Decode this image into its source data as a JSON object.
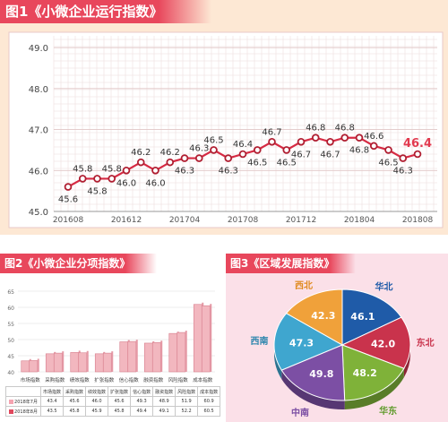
{
  "panel1": {
    "title": "图1《小微企业运行指数》",
    "chart_data": {
      "type": "line",
      "x_ticks": [
        "201608",
        "201612",
        "201704",
        "201708",
        "201712",
        "201804",
        "201808"
      ],
      "y_ticks": [
        "45.0",
        "46.0",
        "47.0",
        "48.0",
        "49.0"
      ],
      "ylim": [
        45.0,
        49.2
      ],
      "values": [
        45.6,
        45.8,
        45.8,
        45.8,
        46.0,
        46.2,
        46.0,
        46.2,
        46.3,
        46.3,
        46.5,
        46.3,
        46.4,
        46.5,
        46.7,
        46.5,
        46.7,
        46.8,
        46.7,
        46.8,
        46.8,
        46.6,
        46.5,
        46.3,
        46.4
      ],
      "labels": [
        "45.6",
        "45.8",
        "45.8",
        "45.8",
        "46.0",
        "46.2",
        "46.0",
        "46.2",
        "46.3",
        "46.3",
        "46.5",
        "46.3",
        "46.4",
        "46.5",
        "46.7",
        "46.5",
        "46.7",
        "46.8",
        "46.7",
        "46.8",
        "46.8",
        "46.6",
        "46.5",
        "46.3",
        "46.4"
      ],
      "label_pos": [
        "below",
        "above",
        "below",
        "above",
        "below",
        "above",
        "below",
        "above",
        "below",
        "above",
        "above",
        "below",
        "above",
        "below",
        "above",
        "below",
        "below",
        "above",
        "below",
        "above",
        "below",
        "above",
        "below",
        "below",
        "above"
      ],
      "highlight_last": true,
      "grid": true,
      "colors": {
        "line": "#d62a43",
        "marker": "#b01e31",
        "highlight": "#e23a4f"
      }
    }
  },
  "panel2": {
    "title": "图2《小微企业分项指数》",
    "chart_data": {
      "type": "bar",
      "categories": [
        "市场指数",
        "采购指数",
        "绩效指数",
        "扩张指数",
        "信心指数",
        "融资指数",
        "风险指数",
        "成本指数"
      ],
      "series": [
        {
          "name": "2018年7月",
          "values": [
            43.4,
            45.6,
            46.0,
            45.6,
            49.3,
            48.9,
            51.9,
            60.9
          ]
        },
        {
          "name": "2018年8月",
          "values": [
            43.5,
            45.8,
            45.9,
            45.8,
            49.4,
            49.1,
            52.2,
            60.5
          ]
        }
      ],
      "series_display": [
        [
          "43.4",
          "45.6",
          "46.0",
          "45.6",
          "49.3",
          "48.9",
          "51.9",
          "60.9"
        ],
        [
          "43.5",
          "45.8",
          "45.9",
          "45.8",
          "49.4",
          "49.1",
          "52.2",
          "60.5"
        ]
      ],
      "y_ticks": [
        "40",
        "45",
        "50",
        "55",
        "60",
        "65"
      ],
      "ylim": [
        40,
        65
      ],
      "grid": true,
      "colors": {
        "bar": "#f2b7bf",
        "bar_edge": "#d77d8c",
        "jul": "#f5a3b0",
        "aug": "#e0485d"
      }
    }
  },
  "panel3": {
    "title": "图3《区域发展指数》",
    "chart_data": {
      "type": "pie",
      "labels": [
        "华北",
        "东北",
        "华东",
        "中南",
        "西南",
        "西北"
      ],
      "values": [
        46.1,
        42.0,
        48.2,
        49.8,
        47.3,
        42.3
      ],
      "value_labels": [
        "46.1",
        "42.0",
        "48.2",
        "49.8",
        "47.3",
        "42.3"
      ],
      "colors": [
        "#1f5ba8",
        "#c9334c",
        "#7fb239",
        "#7c4fa4",
        "#3fa6cf",
        "#f0a13a"
      ],
      "label_colors": [
        "#1f5ba8",
        "#c9334c",
        "#5e9a2a",
        "#7c4fa4",
        "#2e86ad",
        "#e08a1e"
      ]
    }
  }
}
